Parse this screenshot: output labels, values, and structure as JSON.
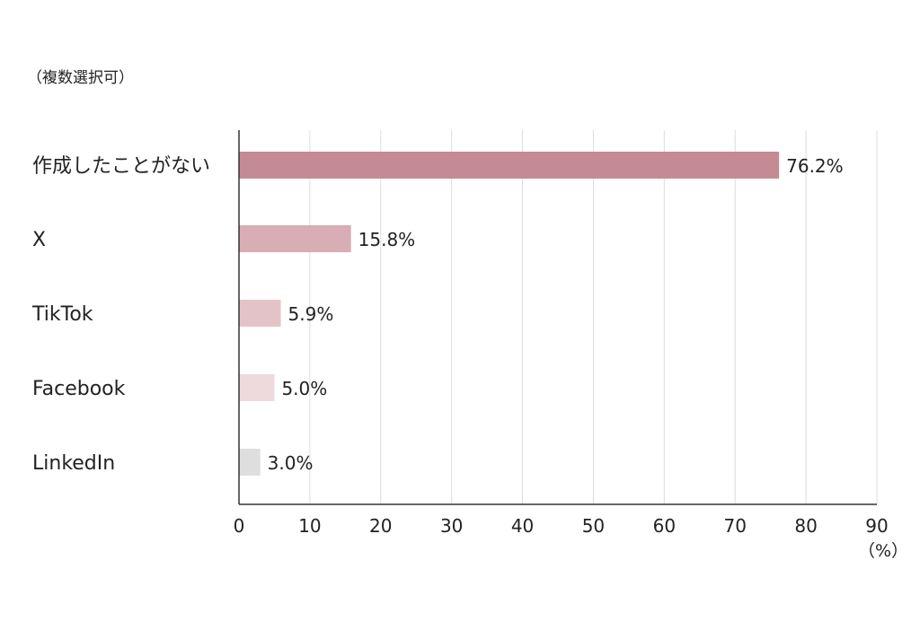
{
  "chart_data": {
    "type": "bar",
    "orientation": "horizontal",
    "note": "（複数選択可）",
    "categories": [
      "作成したことがない",
      "X",
      "TikTok",
      "Facebook",
      "LinkedIn"
    ],
    "values": [
      76.2,
      15.8,
      5.9,
      5.0,
      3.0
    ],
    "data_labels": [
      "76.2%",
      "15.8%",
      "5.9%",
      "5.0%",
      "3.0%"
    ],
    "colors": [
      "#c48b95",
      "#d8adb4",
      "#e4c3c8",
      "#eed9dc",
      "#dedede"
    ],
    "xlim": [
      0,
      90
    ],
    "xticks": [
      "0",
      "10",
      "20",
      "30",
      "40",
      "50",
      "60",
      "70",
      "80",
      "90"
    ],
    "xunit": "（%）",
    "grid": true
  }
}
